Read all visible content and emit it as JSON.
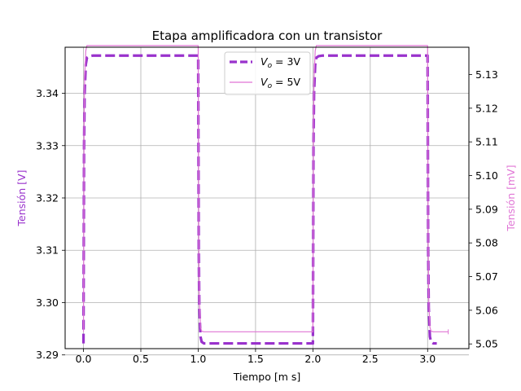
{
  "chart_data": {
    "type": "line",
    "title": "Etapa amplificadora con un transistor",
    "xlabel": "Tiempo [m s]",
    "ylabel_left": "Tensión [V]",
    "ylabel_right": "Tensión [mV]",
    "xlim": [
      -0.16,
      3.36
    ],
    "ylim_left": [
      3.2912,
      3.3488
    ],
    "ylim_right": [
      5.0486,
      5.1381
    ],
    "x_ticks": [
      "0.0",
      "0.5",
      "1.0",
      "1.5",
      "2.0",
      "2.5",
      "3.0"
    ],
    "y_left_ticks": [
      "3.29",
      "3.30",
      "3.31",
      "3.32",
      "3.33",
      "3.34"
    ],
    "y_right_ticks": [
      "5.05",
      "5.06",
      "5.07",
      "5.08",
      "5.09",
      "5.10",
      "5.11",
      "5.12",
      "5.13"
    ],
    "grid": true,
    "legend_position": "top-center",
    "series": [
      {
        "name": "V_o = 3V",
        "legend_main": "V",
        "legend_sub": "o",
        "legend_rest": " = 3V",
        "axis": "left",
        "color": "#9932cc",
        "style": "dashed",
        "x": [
          0.0,
          0.005,
          0.01,
          0.02,
          0.03,
          0.05,
          0.08,
          1.0,
          1.005,
          1.01,
          1.02,
          1.03,
          1.05,
          1.08,
          2.0,
          2.005,
          2.01,
          2.02,
          2.03,
          2.05,
          2.08,
          3.0,
          3.005,
          3.01,
          3.02,
          3.03,
          3.05,
          3.08
        ],
        "y": [
          3.2922,
          3.33,
          3.34,
          3.3455,
          3.3468,
          3.3471,
          3.3472,
          3.3472,
          3.31,
          3.299,
          3.2935,
          3.2925,
          3.2922,
          3.2922,
          3.2922,
          3.33,
          3.34,
          3.3455,
          3.3468,
          3.3471,
          3.3472,
          3.3472,
          3.31,
          3.299,
          3.2935,
          3.2925,
          3.2922,
          3.2922
        ]
      },
      {
        "name": "V_o = 5V",
        "legend_main": "V",
        "legend_sub": "o",
        "legend_rest": " = 5V",
        "axis": "right",
        "color": "#e075d5",
        "style": "solid",
        "x": [
          0.0,
          0.005,
          0.01,
          0.02,
          0.03,
          0.05,
          0.08,
          1.0,
          1.005,
          1.01,
          1.02,
          1.03,
          1.05,
          1.08,
          2.0,
          2.005,
          2.01,
          2.02,
          2.03,
          2.05,
          2.08,
          3.0,
          3.005,
          3.01,
          3.02,
          3.03,
          3.05,
          3.08,
          3.18
        ],
        "y": [
          5.0536,
          5.113,
          5.129,
          5.137,
          5.139,
          5.1393,
          5.1394,
          5.1394,
          5.08,
          5.063,
          5.055,
          5.0538,
          5.0536,
          5.0536,
          5.0536,
          5.113,
          5.129,
          5.137,
          5.139,
          5.1393,
          5.1394,
          5.1394,
          5.08,
          5.063,
          5.055,
          5.0538,
          5.0536,
          5.0536,
          5.0536
        ]
      }
    ]
  }
}
